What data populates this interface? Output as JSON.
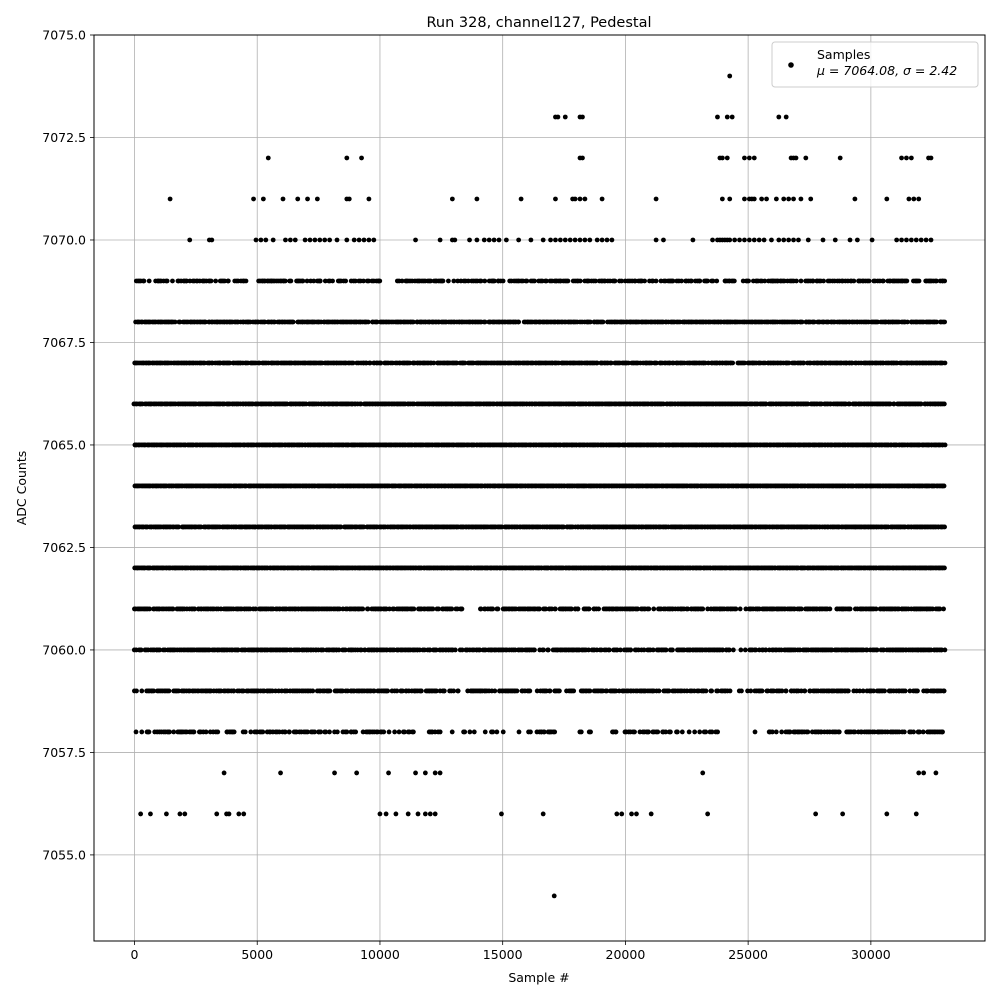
{
  "chart_data": {
    "type": "scatter",
    "title": "Run 328, channel127, Pedestal",
    "xlabel": "Sample #",
    "ylabel": "ADC Counts",
    "xlim": [
      -1650,
      34650
    ],
    "ylim": [
      7052.9,
      7075.0
    ],
    "x_ticks": [
      0,
      5000,
      10000,
      15000,
      20000,
      25000,
      30000
    ],
    "x_tick_labels": [
      "0",
      "5000",
      "10000",
      "15000",
      "20000",
      "25000",
      "30000"
    ],
    "y_ticks": [
      7055.0,
      7057.5,
      7060.0,
      7062.5,
      7065.0,
      7067.5,
      7070.0,
      7072.5,
      7075.0
    ],
    "y_tick_labels": [
      "7055.0",
      "7057.5",
      "7060.0",
      "7062.5",
      "7065.0",
      "7067.5",
      "7070.0",
      "7072.5",
      "7075.0"
    ],
    "grid": true,
    "legend": {
      "placement": "top-right",
      "entries": [
        {
          "label": "Samples",
          "stats": "μ = 7064.08, σ = 2.42"
        }
      ]
    },
    "marker_color": "#000000",
    "series": [
      {
        "name": "Samples",
        "x_range": [
          0,
          33000
        ],
        "levels": [
          {
            "y": 7054,
            "x": [
              17100
            ]
          },
          {
            "y": 7056,
            "x": [
              250,
              650,
              1300,
              1850,
              2050,
              3350,
              3750,
              3850,
              4250,
              4450,
              10000,
              10250,
              10650,
              11150,
              11550,
              11850,
              12050,
              12250,
              14950,
              16650,
              19650,
              19850,
              20250,
              20450,
              21050,
              23350,
              27750,
              28850,
              30650,
              31850
            ]
          },
          {
            "y": 7057,
            "x": [
              3650,
              5950,
              8150,
              9050,
              10350,
              11450,
              11850,
              12250,
              12450,
              23150,
              31950,
              32150,
              32650
            ]
          },
          {
            "y": 7070,
            "x": [
              2250,
              3050,
              3150,
              4950,
              5150,
              5350,
              5650,
              6150,
              6350,
              6550,
              6950,
              7150,
              7350,
              7550,
              7750,
              7950,
              8250,
              8650,
              8950,
              9150,
              9350,
              9550,
              9750,
              11450,
              12450,
              12950,
              13050,
              13650,
              13950,
              14250,
              14450,
              14650,
              14850,
              15150,
              15650,
              16150,
              16650,
              16950,
              17150,
              17350,
              17550,
              17750,
              17950,
              18150,
              18350,
              18550,
              18850,
              19050,
              19250,
              19450,
              21250,
              21550,
              22750,
              23550,
              23750,
              23850,
              23950,
              24050,
              24150,
              24250,
              24450,
              24650,
              24850,
              25050,
              25250,
              25450,
              25650,
              25950,
              26250,
              26450,
              26650,
              26850,
              27050,
              27450,
              28050,
              28550,
              29150,
              29450,
              30050,
              31050,
              31250,
              31450,
              31650,
              31850,
              32050,
              32250,
              32450
            ]
          },
          {
            "y": 7071,
            "x": [
              1450,
              4850,
              5250,
              6050,
              6650,
              7050,
              7450,
              8650,
              8750,
              9550,
              12950,
              13950,
              15750,
              17150,
              17850,
              17950,
              18150,
              18350,
              19050,
              21250,
              23950,
              24250,
              24850,
              25050,
              25150,
              25250,
              25550,
              25750,
              26150,
              26450,
              26650,
              26850,
              27150,
              27550,
              29350,
              30650,
              31550,
              31750,
              31950
            ]
          },
          {
            "y": 7072,
            "x": [
              5450,
              8650,
              9250,
              18150,
              18250,
              23850,
              23950,
              24150,
              24850,
              25050,
              25250,
              26750,
              26850,
              26950,
              27350,
              28750,
              31250,
              31450,
              31650,
              32350,
              32450
            ]
          },
          {
            "y": 7073,
            "x": [
              17150,
              17250,
              17550,
              18150,
              18250,
              23750,
              24150,
              24350,
              26250,
              26550
            ]
          },
          {
            "y": 7074,
            "x": [
              24250
            ]
          }
        ],
        "bands": [
          {
            "y": 7058,
            "density": 0.55,
            "gaps": [
              [
                12450,
                16000
              ],
              [
                17300,
                19400
              ],
              [
                23800,
                25800
              ]
            ]
          },
          {
            "y": 7059,
            "density": 0.7,
            "gaps": [
              [
                24300,
                24600
              ],
              [
                24800,
                25100
              ]
            ]
          },
          {
            "y": 7060,
            "density": 0.8,
            "gaps": [
              [
                24600,
                25000
              ]
            ]
          },
          {
            "y": 7061,
            "density": 0.8,
            "gaps": [
              [
                13400,
                14200
              ],
              [
                24600,
                25000
              ]
            ]
          },
          {
            "y": 7062,
            "density": 1.0,
            "gaps": []
          },
          {
            "y": 7063,
            "density": 0.95,
            "gaps": []
          },
          {
            "y": 7064,
            "density": 1.0,
            "gaps": []
          },
          {
            "y": 7065,
            "density": 1.0,
            "gaps": []
          },
          {
            "y": 7066,
            "density": 0.95,
            "gaps": []
          },
          {
            "y": 7067,
            "density": 0.9,
            "gaps": []
          },
          {
            "y": 7068,
            "density": 0.9,
            "gaps": []
          },
          {
            "y": 7069,
            "density": 0.6,
            "gaps": [
              [
                10000,
                10700
              ]
            ]
          }
        ]
      }
    ]
  }
}
